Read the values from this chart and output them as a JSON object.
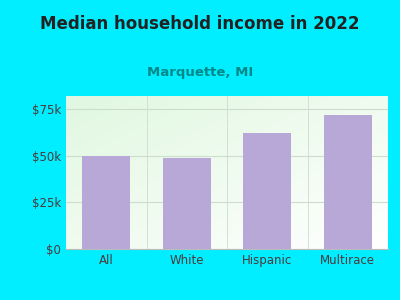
{
  "title": "Median household income in 2022",
  "subtitle": "Marquette, MI",
  "categories": [
    "All",
    "White",
    "Hispanic",
    "Multirace"
  ],
  "values": [
    50000,
    49000,
    62000,
    72000
  ],
  "bar_color": "#b8a8d8",
  "yticks": [
    0,
    25000,
    50000,
    75000
  ],
  "ytick_labels": [
    "$0",
    "$25k",
    "$50k",
    "$75k"
  ],
  "ylim": [
    0,
    82000
  ],
  "outer_bg": "#00eeff",
  "title_color": "#222222",
  "subtitle_color": "#008888",
  "tick_color": "#4a3a3a",
  "title_fontsize": 12,
  "subtitle_fontsize": 9.5,
  "tick_fontsize": 8.5,
  "grid_color": "#ccddcc",
  "spine_color": "#bbbbbb"
}
